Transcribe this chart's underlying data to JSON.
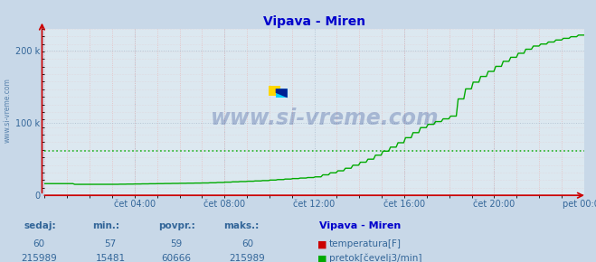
{
  "title": "Vipava - Miren",
  "title_color": "#0000cc",
  "bg_color": "#c8d8e8",
  "plot_bg_color": "#dce8f0",
  "tick_color": "#336699",
  "watermark_text": "www.si-vreme.com",
  "watermark_color": "#1a3a8a",
  "x_ticks": [
    "čet 04:00",
    "čet 08:00",
    "čet 12:00",
    "čet 16:00",
    "čet 20:00",
    "pet 00:00"
  ],
  "x_tick_positions": [
    0.1667,
    0.3333,
    0.5,
    0.6667,
    0.8333,
    1.0
  ],
  "ylim": [
    0,
    230000
  ],
  "temp_color": "#cc0000",
  "flow_color": "#00aa00",
  "avg_line_color": "#00aa00",
  "avg_line_value": 60666,
  "temp_value_flat": 60,
  "legend_title": "Vipava - Miren",
  "legend_title_color": "#0000cc",
  "legend_color": "#336699",
  "footer_labels": [
    "sedaj:",
    "min.:",
    "povpr.:",
    "maks.:"
  ],
  "footer_values_temp": [
    60,
    57,
    59,
    60
  ],
  "footer_values_flow": [
    215989,
    15481,
    60666,
    215989
  ],
  "footer_label1": "temperatura[F]",
  "footer_label2": "pretok[čevelj3/min]",
  "left_label": "www.si-vreme.com",
  "left_label_color": "#336699",
  "arrow_color": "#cc0000",
  "minor_grid_color": "#e8b8b8",
  "major_grid_color": "#aabbcc"
}
